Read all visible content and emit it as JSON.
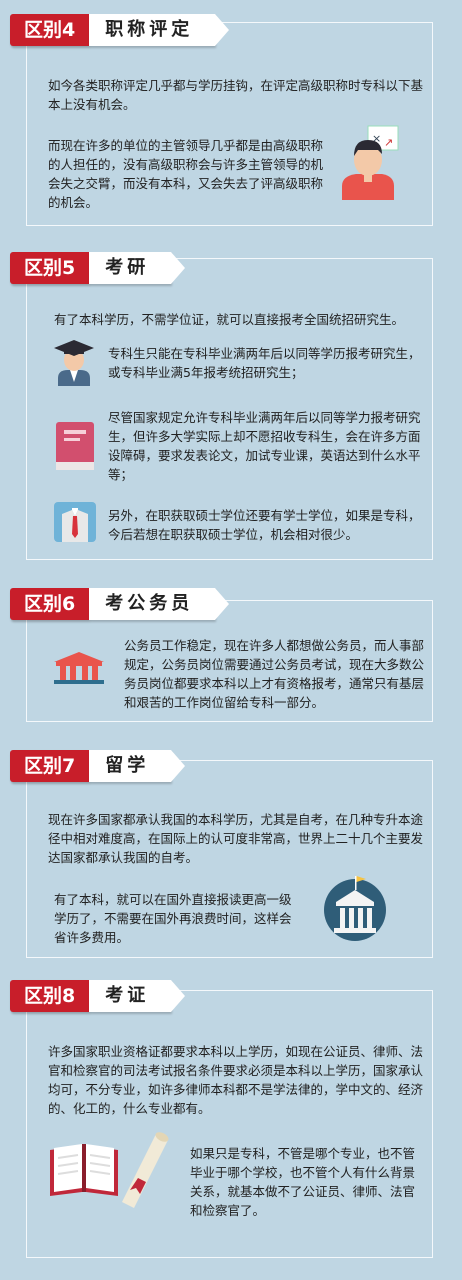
{
  "sections": [
    {
      "tag": "区别4",
      "title": "职称评定",
      "p1": "如今各类职称评定几乎都与学历挂钩，在评定高级职称时专科以下基本上没有机会。",
      "p2": "而现在许多的单位的主管领导几乎都是由高级职称的人担任的，没有高级职称会与许多主管领导的机会失之交臂，而没有本科，又会失去了评高级职称的机会。"
    },
    {
      "tag": "区别5",
      "title": "考研",
      "intro": "有了本科学历，不需学位证，就可以直接报考全国统招研究生。",
      "p1": "专科生只能在专科毕业满两年后以同等学历报考研究生，或专科毕业满5年报考统招研究生；",
      "p2": "尽管国家规定允许专科毕业满两年后以同等学力报考研究生，但许多大学实际上却不愿招收专科生，会在许多方面设障碍，要求发表论文，加试专业课，英语达到什么水平等；",
      "p3": "另外，在职获取硕士学位还要有学士学位，如果是专科，今后若想在职获取硕士学位，机会相对很少。"
    },
    {
      "tag": "区别6",
      "title": "考公务员",
      "p1": "公务员工作稳定，现在许多人都想做公务员，而人事部规定，公务员岗位需要通过公务员考试，现在大多数公务员岗位都要求本科以上才有资格报考，通常只有基层和艰苦的工作岗位留给专科一部分。"
    },
    {
      "tag": "区别7",
      "title": "留学",
      "p1": "现在许多国家都承认我国的本科学历，尤其是自考，在几种专升本途径中相对难度高，在国际上的认可度非常高，世界上二十几个主要发达国家都承认我国的自考。",
      "p2": "有了本科，就可以在国外直接报读更高一级学历了，不需要在国外再浪费时间，这样会省许多费用。"
    },
    {
      "tag": "区别8",
      "title": "考证",
      "p1": "许多国家职业资格证都要求本科以上学历，如现在公证员、律师、法官和检察官的司法考试报名条件要求必须是本科以上学历，国家承认均可，不分专业，如许多律师本科都不是学法律的，学中文的、经济的、化工的，什么专业都有。",
      "p2": "如果只是专科，不管是哪个专业，也不管毕业于哪个学校，也不管个人有什么背景关系，就基本做不了公证员、律师、法官和检察官了。"
    }
  ],
  "colors": {
    "accent": "#c81e2a",
    "background": "#bfd6e3"
  }
}
